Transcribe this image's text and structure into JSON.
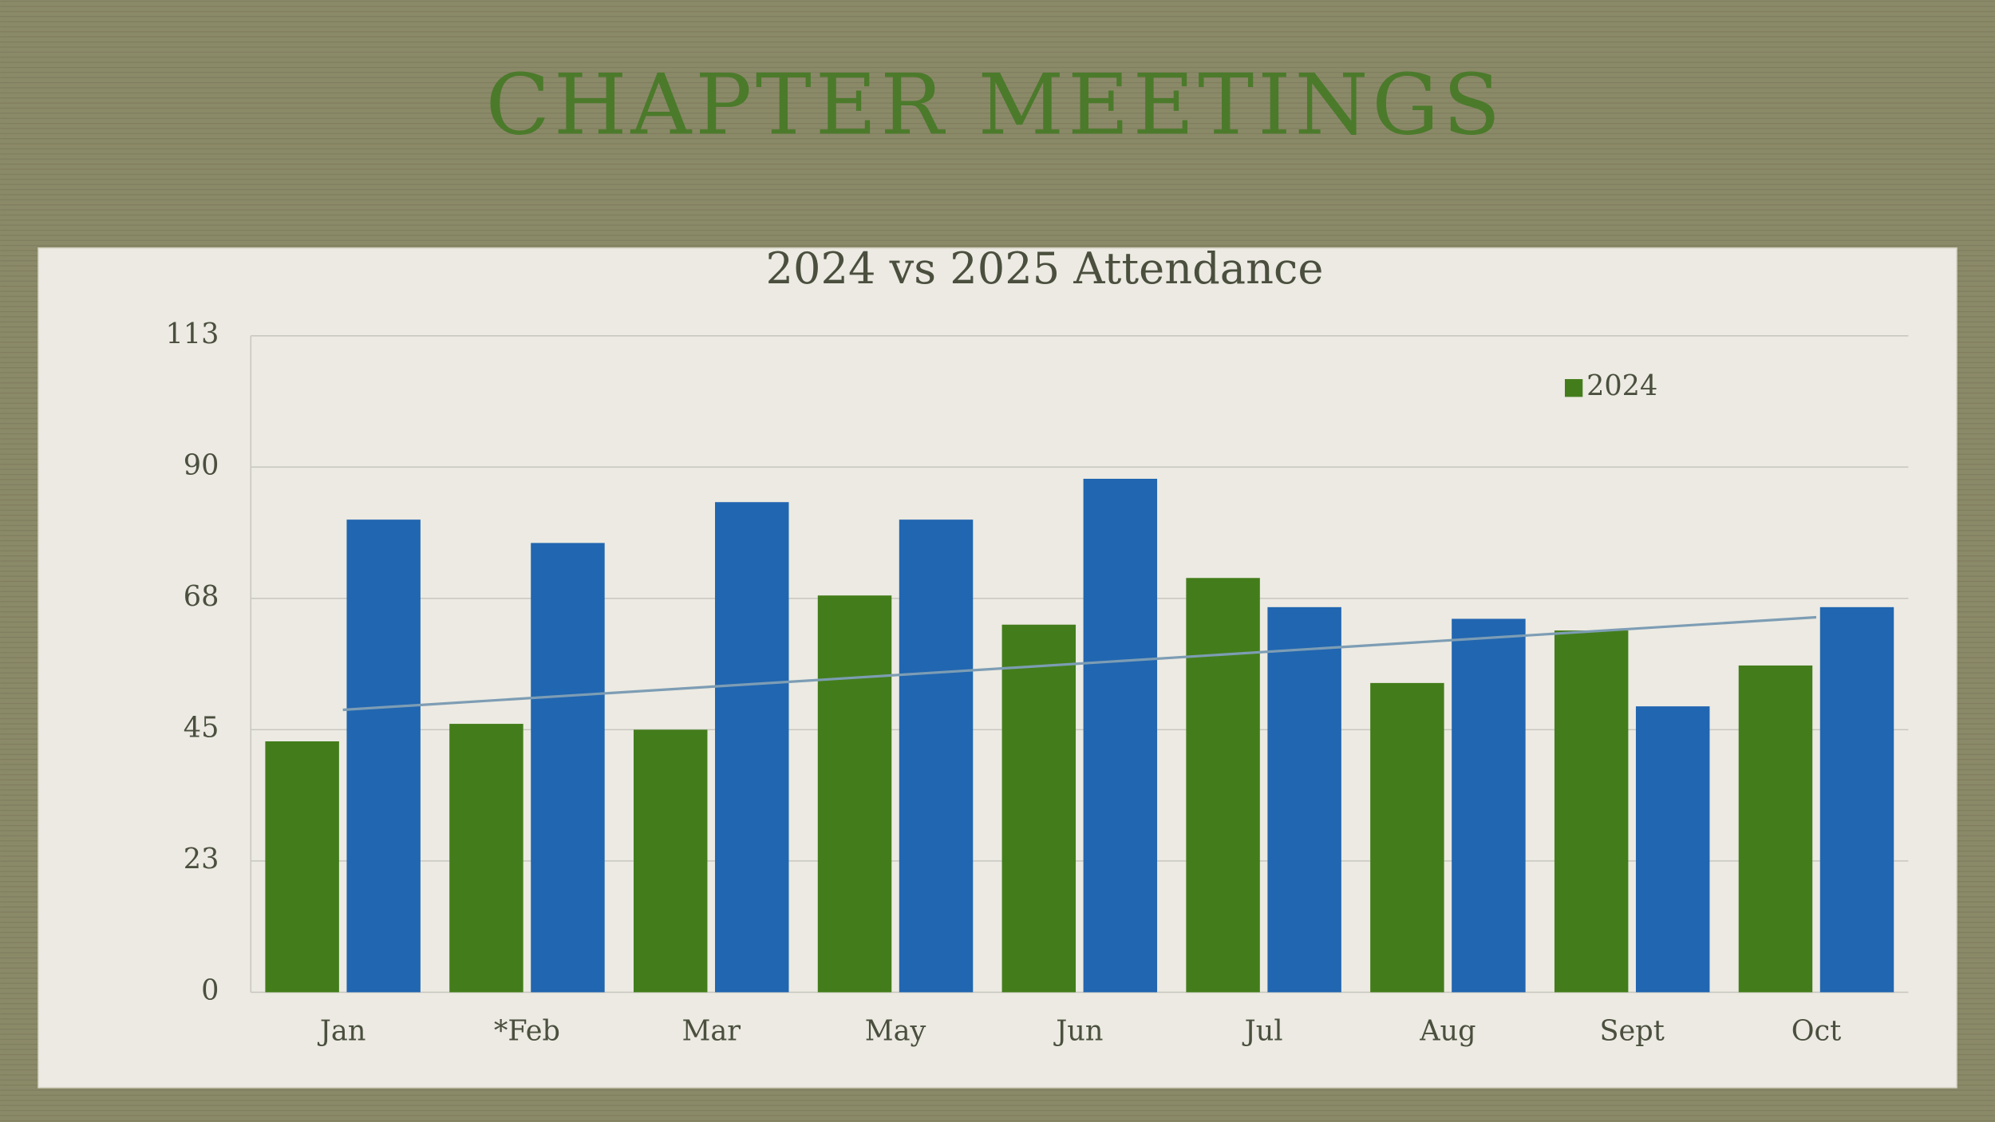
{
  "page_title": "CHAPTER MEETINGS",
  "chart_data": {
    "type": "bar",
    "title": "2024 vs 2025 Attendance",
    "categories": [
      "Jan",
      "*Feb",
      "Mar",
      "May",
      "Jun",
      "Jul",
      "Aug",
      "Sept",
      "Oct"
    ],
    "series": [
      {
        "name": "2024",
        "color": "#437d1b",
        "values": [
          43,
          46,
          45,
          68,
          63,
          71,
          53,
          62,
          56
        ],
        "trendline": true,
        "trendline_color": "#7d9db4"
      },
      {
        "color": "#2166b0",
        "values": [
          81,
          77,
          84,
          81,
          88,
          66,
          64,
          49,
          66
        ]
      }
    ],
    "ylim": [
      0,
      112.5
    ],
    "yticks": [
      0,
      {
        "value": 22.5,
        "label": "23"
      },
      45,
      {
        "value": 67.5,
        "label": "68"
      },
      90,
      {
        "value": 112.5,
        "label": "113"
      }
    ],
    "grid": true,
    "legend": "top-right"
  }
}
